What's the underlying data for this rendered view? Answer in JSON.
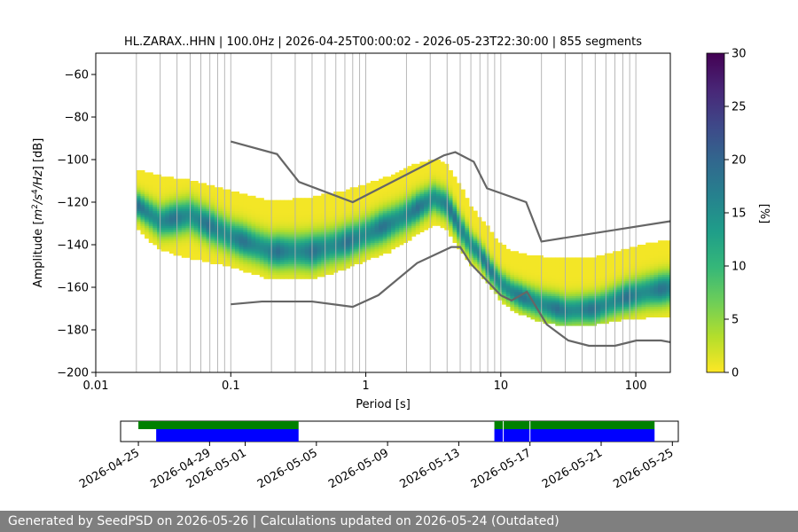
{
  "chart_data": [
    {
      "type": "heatmap",
      "title": "HL.ZARAX..HHN | 100.0Hz | 2026-04-25T00:00:02 - 2026-05-23T22:30:00 | 855 segments",
      "xlabel": "Period [s]",
      "ylabel": "Amplitude [m²/s⁴/Hz] [dB]",
      "x_scale": "log",
      "xlim": [
        0.01,
        180
      ],
      "ylim": [
        -200,
        -50
      ],
      "x_ticks": [
        0.01,
        0.1,
        1,
        10,
        100
      ],
      "x_tick_labels": [
        "0.01",
        "0.1",
        "1",
        "10",
        "100"
      ],
      "y_ticks": [
        -200,
        -180,
        -160,
        -140,
        -120,
        -100,
        -80,
        -60
      ],
      "y_tick_labels": [
        "−200",
        "−180",
        "−160",
        "−140",
        "−120",
        "−100",
        "−80",
        "−60"
      ],
      "grid": "vertical log grid",
      "colorbar": {
        "label": "[%]",
        "range": [
          0,
          30
        ],
        "ticks": [
          0,
          5,
          10,
          15,
          20,
          25,
          30
        ],
        "colormap": "viridis_r"
      },
      "colormap_stops": [
        "#fde725",
        "#b5de2b",
        "#6ece58",
        "#35b779",
        "#1f9e89",
        "#26828e",
        "#31688e",
        "#3e4989",
        "#482878",
        "#440154"
      ],
      "psd_mode": {
        "periods": [
          0.02,
          0.03,
          0.05,
          0.1,
          0.2,
          0.4,
          0.7,
          1.0,
          1.5,
          2.0,
          2.5,
          3.2,
          4.0,
          5.0,
          6.0,
          7.0,
          8.0,
          9.0,
          10,
          12,
          15,
          20,
          30,
          50,
          80,
          120,
          180
        ],
        "db": [
          -121,
          -129,
          -126,
          -136,
          -143,
          -143,
          -139,
          -135,
          -130,
          -126,
          -122,
          -118,
          -121,
          -132,
          -140,
          -144,
          -150,
          -155,
          -158,
          -162,
          -165,
          -168,
          -171,
          -170,
          -165,
          -162,
          -160
        ],
        "upper_db": [
          -105,
          -108,
          -110,
          -115,
          -120,
          -118,
          -115,
          -112,
          -108,
          -104,
          -102,
          -100,
          -103,
          -112,
          -122,
          -128,
          -132,
          -137,
          -140,
          -143,
          -145,
          -146,
          -147,
          -146,
          -143,
          -140,
          -138
        ],
        "lower_db": [
          -132,
          -142,
          -146,
          -150,
          -156,
          -156,
          -151,
          -147,
          -143,
          -138,
          -134,
          -130,
          -133,
          -142,
          -149,
          -153,
          -158,
          -162,
          -166,
          -170,
          -173,
          -176,
          -178,
          -177,
          -175,
          -174,
          -173
        ]
      },
      "nhnm": {
        "periods": [
          0.1,
          0.22,
          0.32,
          0.8,
          3.8,
          4.6,
          6.3,
          7.9,
          15.4,
          20.0,
          354.8
        ],
        "db": [
          -91.5,
          -97.4,
          -110.5,
          -120.0,
          -98.0,
          -96.5,
          -101.0,
          -113.5,
          -120.0,
          -138.5,
          -126.0
        ]
      },
      "nlnm": {
        "periods": [
          0.1,
          0.17,
          0.4,
          0.8,
          1.24,
          2.4,
          4.3,
          5.0,
          6.0,
          10.0,
          12.0,
          15.6,
          21.9,
          31.6,
          45.0,
          70.0,
          101.0,
          154.0,
          180.0
        ],
        "db": [
          -168.0,
          -166.7,
          -166.7,
          -169.2,
          -163.7,
          -148.6,
          -141.1,
          -141.1,
          -149.0,
          -163.8,
          -166.2,
          -162.1,
          -177.5,
          -185.0,
          -187.5,
          -187.5,
          -185.0,
          -185.0,
          -185.8
        ]
      }
    },
    {
      "type": "timeline",
      "x_tick_labels": [
        "2026-04-25",
        "2026-04-29",
        "2026-05-01",
        "2026-05-05",
        "2026-05-09",
        "2026-05-13",
        "2026-05-17",
        "2026-05-21",
        "2026-05-25"
      ],
      "x_tick_dates": [
        "2026-04-25",
        "2026-04-29",
        "2026-05-01",
        "2026-05-05",
        "2026-05-09",
        "2026-05-13",
        "2026-05-17",
        "2026-05-21",
        "2026-05-25"
      ],
      "xlim": [
        "2026-04-24",
        "2026-05-25T08:00"
      ],
      "rows": [
        {
          "color": "#008000",
          "intervals": [
            [
              "2026-04-25",
              "2026-05-04"
            ],
            [
              "2026-05-15",
              "2026-05-24"
            ]
          ]
        },
        {
          "color": "#0000ff",
          "intervals": [
            [
              "2026-04-26",
              "2026-05-04"
            ],
            [
              "2026-05-15",
              "2026-05-24"
            ]
          ]
        }
      ],
      "markers": [
        "2026-05-15T12:00",
        "2026-05-17"
      ]
    }
  ],
  "footer": {
    "text": "Generated by SeedPSD on 2026-05-26 | Calculations updated on 2026-05-24 (Outdated)"
  }
}
